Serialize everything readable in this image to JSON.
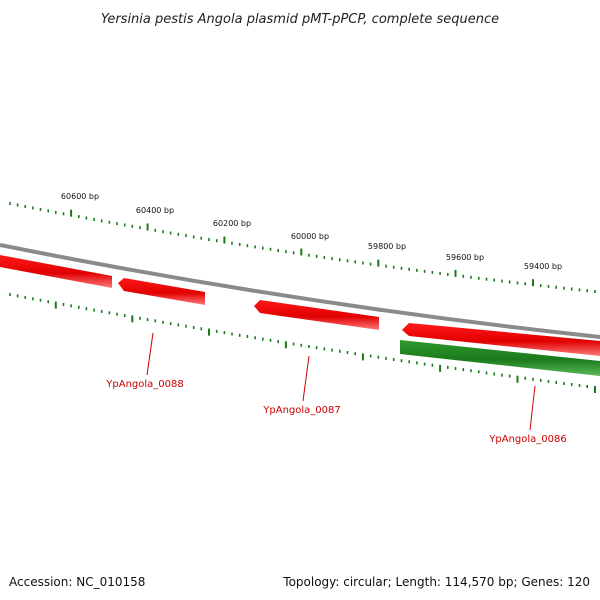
{
  "title": "Yersinia pestis Angola plasmid pMT-pPCP, complete sequence",
  "ticks": [
    "60600 bp",
    "60400 bp",
    "60200 bp",
    "60000 bp",
    "59800 bp",
    "59600 bp",
    "59400 bp"
  ],
  "genes": [
    {
      "name": "YpAngola_0088",
      "strand": "reverse"
    },
    {
      "name": "YpAngola_0087",
      "strand": "reverse"
    },
    {
      "name": "YpAngola_0086",
      "strand": "forward"
    }
  ],
  "footer": {
    "accession": "Accession: NC_010158",
    "summary": "Topology: circular; Length: 114,570 bp; Genes: 120"
  },
  "colors": {
    "reverse_gene": "#ee1111",
    "forward_gene": "#228822",
    "tick": "#1a7a1a",
    "backbone": "#888888",
    "label": "#cc0000"
  }
}
